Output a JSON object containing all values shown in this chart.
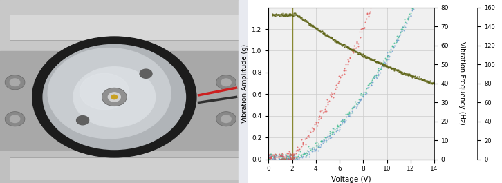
{
  "x_min": 0,
  "x_max": 14,
  "y_left_min": 0.0,
  "y_left_max": 1.4,
  "y_right_min": 0,
  "y_right_max": 80,
  "y_right2_min": 0,
  "y_right2_max": 160,
  "x_ticks": [
    0,
    2,
    4,
    6,
    8,
    10,
    12,
    14
  ],
  "y_left_ticks": [
    0.0,
    0.2,
    0.4,
    0.6,
    0.8,
    1.0,
    1.2
  ],
  "y_right_ticks": [
    0,
    10,
    20,
    30,
    40,
    50,
    60,
    70,
    80
  ],
  "y_right2_ticks": [
    0,
    20,
    40,
    60,
    80,
    100,
    120,
    140,
    160
  ],
  "xlabel": "Voltage (V)",
  "ylabel_left": "Vibration Amplitude (g)",
  "ylabel_right": "Vibration Frequency (Hz)",
  "color_red": "#e05050",
  "color_blue": "#6699cc",
  "color_cyan": "#33bb88",
  "color_olive": "#5a6010",
  "vertical_line_x": 2.0,
  "vertical_line_color": "#888833",
  "bg_photo_top": "#c8c8c8",
  "bg_photo_mid": "#aaaaaa",
  "bg_photo_bot": "#b8b8b8",
  "motor_outer": "#1a1a1a",
  "motor_silver": "#c0c4c8",
  "motor_center": "#e0e4e8",
  "plate_color": "#d0d0d0",
  "plate_dark": "#888888",
  "background_color": "#f0f0f0",
  "grid_color": "#cccccc"
}
